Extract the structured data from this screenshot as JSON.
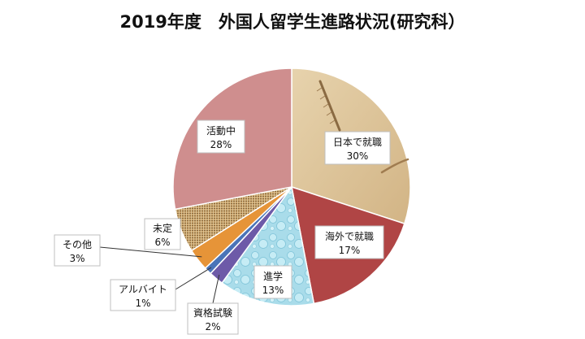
{
  "chart_data": {
    "type": "pie",
    "title": "2019年度　外国人留学生進路状況(研究科）",
    "slices": [
      {
        "label": "日本で就職",
        "value": 30,
        "percent_label": "30%",
        "color": "#dcc29a",
        "pattern": "fossil"
      },
      {
        "label": "海外で就職",
        "value": 17,
        "percent_label": "17%",
        "color": "#b04545",
        "pattern": "none"
      },
      {
        "label": "進学",
        "value": 13,
        "percent_label": "13%",
        "color": "#a9dcea",
        "pattern": "bubbles"
      },
      {
        "label": "資格試験",
        "value": 2,
        "percent_label": "2%",
        "color": "#6d5aa8",
        "pattern": "none"
      },
      {
        "label": "アルバイト",
        "value": 1,
        "percent_label": "1%",
        "color": "#4a74b8",
        "pattern": "none"
      },
      {
        "label": "その他",
        "value": 3,
        "percent_label": "3%",
        "color": "#e69438",
        "pattern": "none"
      },
      {
        "label": "未定",
        "value": 6,
        "percent_label": "6%",
        "color": "#c9a36c",
        "pattern": "burlap"
      },
      {
        "label": "活動中",
        "value": 28,
        "percent_label": "28%",
        "color": "#cf8e8e",
        "pattern": "none"
      }
    ]
  }
}
